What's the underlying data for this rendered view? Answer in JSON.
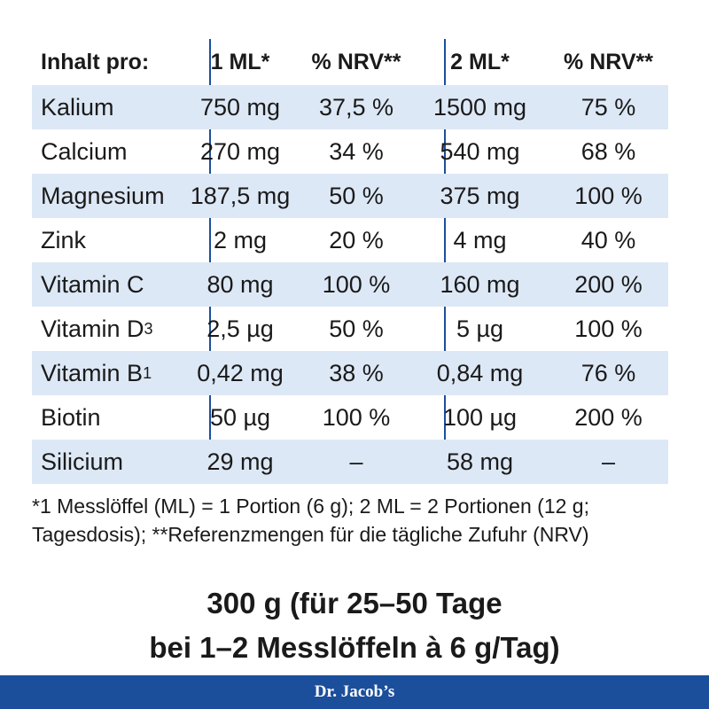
{
  "table": {
    "headers": [
      "Inhalt pro:",
      "1 ML*",
      "% NRV**",
      "2 ML*",
      "% NRV**"
    ],
    "rows": [
      {
        "name": "Kalium",
        "sub": "",
        "v1": "750 mg",
        "p1": "37,5 %",
        "v2": "1500 mg",
        "p2": "75 %"
      },
      {
        "name": "Calcium",
        "sub": "",
        "v1": "270 mg",
        "p1": "34 %",
        "v2": "540 mg",
        "p2": "68 %"
      },
      {
        "name": "Magnesium",
        "sub": "",
        "v1": "187,5 mg",
        "p1": "50 %",
        "v2": "375 mg",
        "p2": "100 %"
      },
      {
        "name": "Zink",
        "sub": "",
        "v1": "2 mg",
        "p1": "20 %",
        "v2": "4 mg",
        "p2": "40 %"
      },
      {
        "name": "Vitamin C",
        "sub": "",
        "v1": "80 mg",
        "p1": "100 %",
        "v2": "160 mg",
        "p2": "200 %"
      },
      {
        "name": "Vitamin D",
        "sub": "3",
        "v1": "2,5 µg",
        "p1": "50 %",
        "v2": "5 µg",
        "p2": "100 %"
      },
      {
        "name": "Vitamin B",
        "sub": "1",
        "v1": "0,42 mg",
        "p1": "38 %",
        "v2": "0,84 mg",
        "p2": "76 %"
      },
      {
        "name": "Biotin",
        "sub": "",
        "v1": "50 µg",
        "p1": "100 %",
        "v2": "100 µg",
        "p2": "200 %"
      },
      {
        "name": "Silicium",
        "sub": "",
        "v1": "29 mg",
        "p1": "–",
        "v2": "58 mg",
        "p2": "–"
      }
    ]
  },
  "footnote": {
    "line1": "*1 Messlöffel (ML) = 1 Portion (6 g); 2 ML = 2 Portionen (12 g;",
    "line2": "Tagesdosis); **Referenzmengen für die tägliche Zufuhr (NRV)"
  },
  "summary": {
    "line1": "300 g (für 25–50 Tage",
    "line2": "bei 1–2 Messlöffeln à 6 g/Tag)"
  },
  "brand": {
    "name": "Dr. Jacob’s",
    "color": "#1b4f9c",
    "shade_color": "#dde8f6"
  }
}
